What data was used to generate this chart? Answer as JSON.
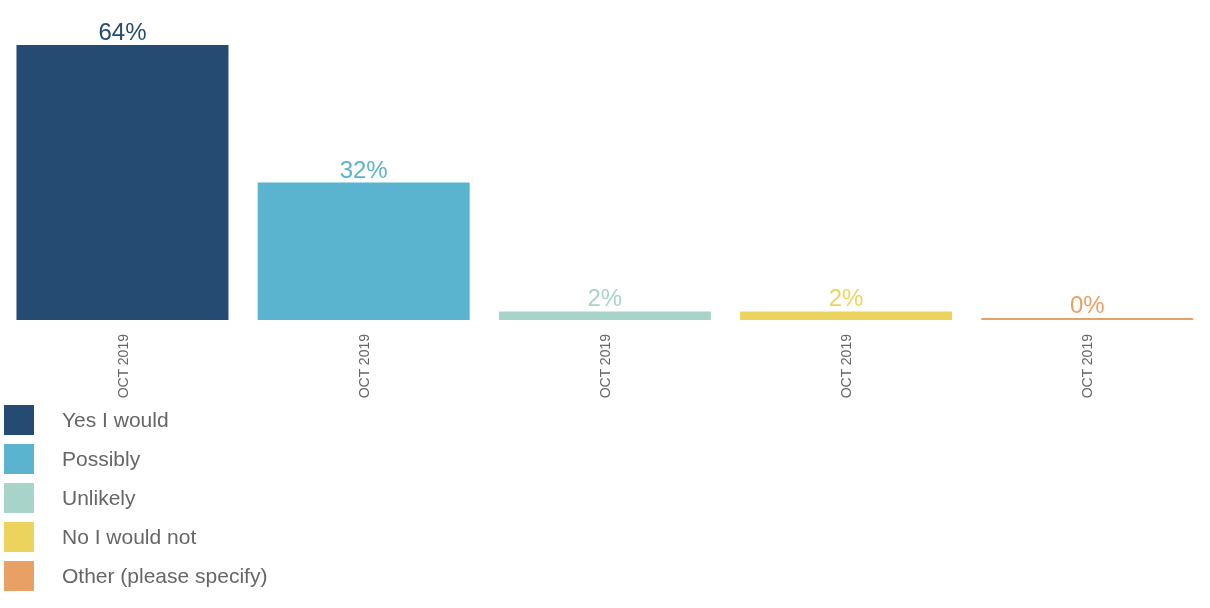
{
  "chart_data": {
    "type": "bar",
    "categories": [
      "OCT 2019",
      "OCT 2019",
      "OCT 2019",
      "OCT 2019",
      "OCT 2019"
    ],
    "stacked": true,
    "data_labels": false,
    "legend": "bottom",
    "series": [
      {
        "name": "Yes I would",
        "color": "#254b73",
        "values": [
          64,
          null,
          null,
          null,
          null
        ],
        "value_labels": [
          "64%",
          null,
          null,
          null,
          null
        ]
      },
      {
        "name": "Possibly",
        "color": "#5ab3cf",
        "values": [
          null,
          32,
          null,
          null,
          null
        ],
        "value_labels": [
          null,
          "32%",
          null,
          null,
          null
        ]
      },
      {
        "name": "Unlikely",
        "color": "#a8d3c9",
        "values": [
          null,
          null,
          2,
          null,
          null
        ],
        "value_labels": [
          null,
          null,
          "2%",
          null,
          null
        ]
      },
      {
        "name": "No I would not",
        "color": "#ecd35e",
        "values": [
          null,
          null,
          null,
          2,
          null
        ],
        "value_labels": [
          null,
          null,
          null,
          "2%",
          null
        ]
      },
      {
        "name": "Other (please specify)",
        "color": "#e9a064",
        "values": [
          null,
          null,
          null,
          null,
          0
        ],
        "value_labels": [
          null,
          null,
          null,
          null,
          "0%"
        ]
      }
    ]
  }
}
